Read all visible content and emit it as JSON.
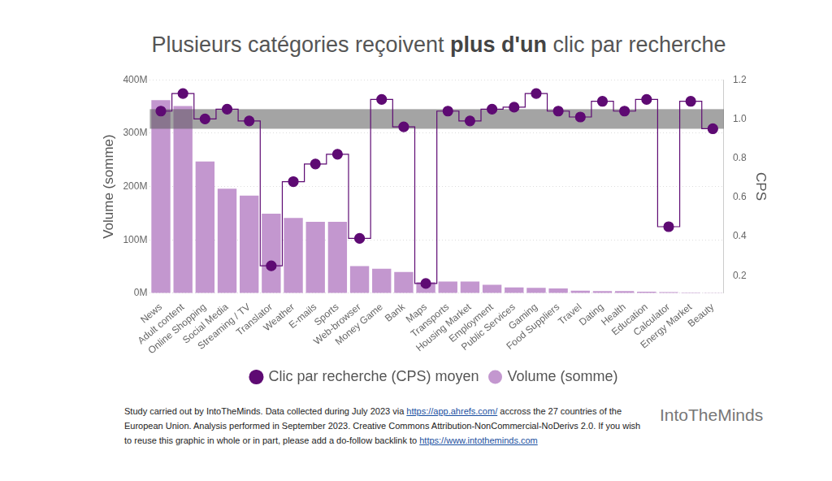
{
  "chart_data": {
    "type": "bar",
    "title": "Plusieurs catégories reçoivent plus d'un clic par recherche",
    "title_bold": "plus d'un",
    "y_label": "Volume (somme)",
    "y2_label": "CPS",
    "caption": "Study carried out by IntoTheMinds. Data collected during July 2023 via https://app.ahrefs.com/ accross the 27 countries of the European Union. Analysis performed in September 2023. Creative Commons Attribution-NonCommercial-NoDerivs 2.0. If you wish to reuse this graphic in whole or in part, please add a do-follow backlink to https://www.intotheminds.com",
    "logo_text": "IntoTheMinds",
    "categories": [
      "News",
      "Adult content",
      "Online Shopping",
      "Social Media",
      "Streaming / TV",
      "Translator",
      "Weather",
      "E-mails",
      "Sports",
      "Web-browser",
      "Money Game",
      "Bank",
      "Maps",
      "Transports",
      "Housing Market",
      "Employment",
      "Public Services",
      "Gaming",
      "Food Suppliers",
      "Travel",
      "Dating",
      "Health",
      "Education",
      "Calculator",
      "Energy Market",
      "Beauty"
    ],
    "series": [
      {
        "name": "Volume (somme)",
        "type": "bar",
        "color": "#c397cf",
        "values": [
          362000000,
          351000000,
          247000000,
          196000000,
          183000000,
          149000000,
          141000000,
          134000000,
          134000000,
          51000000,
          46000000,
          40000000,
          21000000,
          22000000,
          22000000,
          16000000,
          11000000,
          10000000,
          9000000,
          5000000,
          4000000,
          4000000,
          3000000,
          2000000,
          1500000,
          1000000
        ]
      },
      {
        "name": "Clic par recherche (CPS) moyen",
        "type": "line",
        "axis": "y2",
        "color": "#5e0a73",
        "marker": "circle",
        "line_style": "stepped",
        "values": [
          1.04,
          1.13,
          1.0,
          1.05,
          0.99,
          0.25,
          0.68,
          0.77,
          0.82,
          0.39,
          1.1,
          0.96,
          0.16,
          1.04,
          0.99,
          1.05,
          1.06,
          1.13,
          1.04,
          1.01,
          1.09,
          1.04,
          1.1,
          0.45,
          1.09,
          0.95
        ]
      }
    ],
    "band": {
      "axis": "y2",
      "from": 0.95,
      "to": 1.05
    },
    "ylim": [
      0,
      400000000
    ],
    "yticks": [
      {
        "value": 0,
        "label": "0M"
      },
      {
        "value": 100000000,
        "label": "100M"
      },
      {
        "value": 200000000,
        "label": "200M"
      },
      {
        "value": 300000000,
        "label": "300M"
      },
      {
        "value": 400000000,
        "label": "400M"
      }
    ],
    "y2lim": [
      0.11,
      1.2
    ],
    "y2ticks": [
      0.2,
      0.4,
      0.6,
      0.8,
      {
        "value": 1.0,
        "label": "1.0"
      },
      1.2
    ],
    "grid": true,
    "legend": "bottom"
  }
}
